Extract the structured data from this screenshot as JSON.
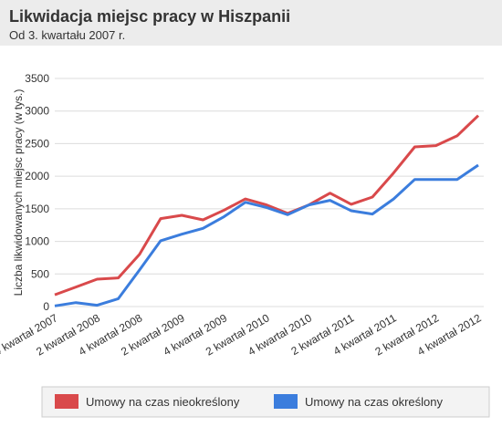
{
  "chart_data": {
    "type": "line",
    "title": "Likwidacja miejsc pracy w Hiszpanii",
    "subtitle": "Od 3. kwartału 2007 r.",
    "y_label": "Liczba likwidowanych miejsc pracy (w tys.)",
    "categories": [
      "4 kwartał 2007",
      null,
      "2 kwartał 2008",
      null,
      "4 kwartał 2008",
      null,
      "2 kwartał 2009",
      null,
      "4 kwartał 2009",
      null,
      "2 kwartał 2010",
      null,
      "4 kwartał 2010",
      null,
      "2 kwartał 2011",
      null,
      "4 kwartał 2011",
      null,
      "2 kwartał 2012",
      null,
      "4 kwartał 2012"
    ],
    "series": [
      {
        "name": "Umowy na czas nieokreślony",
        "color": "#d9494b",
        "values": [
          180,
          300,
          420,
          440,
          800,
          1350,
          1400,
          1330,
          1480,
          1650,
          1560,
          1430,
          1560,
          1740,
          1570,
          1680,
          2050,
          2450,
          2470,
          2620,
          2930
        ]
      },
      {
        "name": "Umowy na czas określony",
        "color": "#3b7ddd",
        "values": [
          10,
          60,
          20,
          120,
          560,
          1010,
          1110,
          1200,
          1380,
          1600,
          1520,
          1410,
          1560,
          1630,
          1470,
          1420,
          1650,
          1950,
          1950,
          1950,
          2170
        ]
      }
    ],
    "ylim": [
      0,
      3500
    ],
    "yticks": [
      0,
      500,
      1000,
      1500,
      2000,
      2500,
      3000,
      3500
    ],
    "grid": true,
    "legend": "bottom"
  }
}
